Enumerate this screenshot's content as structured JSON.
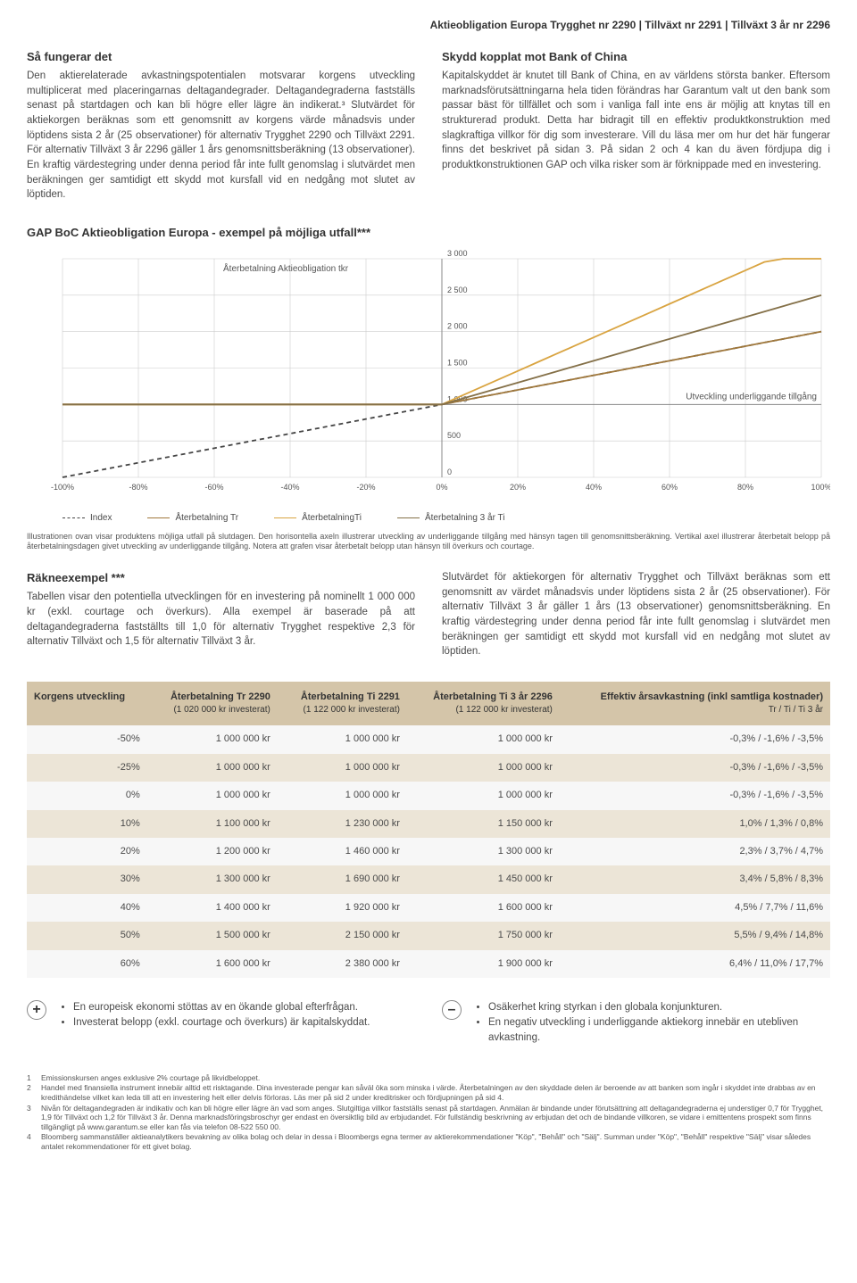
{
  "header": "Aktieobligation Europa Trygghet nr 2290 | Tillväxt nr 2291 | Tillväxt 3 år nr 2296",
  "left": {
    "title": "Så fungerar det",
    "body": "Den aktierelaterade avkastningspotentialen motsvarar korgens utveckling multiplicerat med placeringarnas deltagandegrader. Deltagandegraderna fastställs senast på startdagen och kan bli högre eller lägre än indikerat.³ Slutvärdet för aktiekorgen beräknas som ett genomsnitt av korgens värde månadsvis under löptidens sista 2 år (25 observationer) för alternativ Trygghet 2290 och Tillväxt 2291. För alternativ Tillväxt 3 år 2296 gäller 1 års genomsnittsberäkning (13 observationer). En kraftig värdestegring under denna period får inte fullt genomslag i slutvärdet men beräkningen ger samtidigt ett skydd mot kursfall vid en nedgång mot slutet av löptiden."
  },
  "right": {
    "title": "Skydd kopplat mot Bank of China",
    "body": "Kapitalskyddet är knutet till Bank of China, en av världens största banker. Eftersom marknadsförutsättningarna hela tiden förändras har Garantum valt ut den bank som passar bäst för tillfället och som i vanliga fall inte ens är möjlig att knytas till en strukturerad produkt. Detta har bidragit till en effektiv produktkonstruktion med slagkraftiga villkor för dig som investerare. Vill du läsa mer om hur det här fungerar finns det beskrivet på sidan 3. På sidan 2 och 4 kan du även fördjupa dig i produktkonstruktionen GAP och vilka risker som är förknippade med en investering."
  },
  "chart": {
    "title": "GAP BoC Aktieobligation Europa - exempel på möjliga utfall***",
    "y_label": "Återbetalning Aktieobligation tkr",
    "x_label": "Utveckling underliggande tillgång",
    "type": "line",
    "xlim": [
      -100,
      100
    ],
    "ylim": [
      0,
      3000
    ],
    "x_ticks": [
      "-100%",
      "-80%",
      "-60%",
      "-40%",
      "-20%",
      "0%",
      "20%",
      "40%",
      "60%",
      "80%",
      "100%"
    ],
    "y_ticks": [
      "0",
      "500",
      "1 000",
      "1 500",
      "2 000",
      "2 500",
      "3 000"
    ],
    "grid_color": "#cccccc",
    "background_color": "#ffffff",
    "series": [
      {
        "name": "Index",
        "color": "#444444",
        "dash": true,
        "points": [
          [
            -100,
            0
          ],
          [
            100,
            2000
          ]
        ]
      },
      {
        "name": "Återbetalning Tr",
        "color": "#a0783c",
        "dash": false,
        "points": [
          [
            -100,
            1000
          ],
          [
            0,
            1000
          ],
          [
            100,
            2000
          ]
        ]
      },
      {
        "name": "ÅterbetalningTi",
        "color": "#d9a441",
        "dash": false,
        "points": [
          [
            -100,
            1000
          ],
          [
            0,
            1000
          ],
          [
            100,
            3300
          ]
        ]
      },
      {
        "name": "Återbetalning 3 år Ti",
        "color": "#847048",
        "dash": false,
        "points": [
          [
            -100,
            1000
          ],
          [
            0,
            1000
          ],
          [
            100,
            2500
          ]
        ]
      }
    ],
    "caption": "Illustrationen ovan visar produktens möjliga utfall på slutdagen. Den horisontella axeln illustrerar utveckling av underliggande tillgång med hänsyn tagen till genomsnittsberäkning. Vertikal axel illustrerar återbetalt belopp på återbetalningsdagen givet utveckling av underliggande tillgång. Notera att grafen visar återbetalt belopp utan hänsyn till överkurs och courtage."
  },
  "example": {
    "left_title": "Räkneexempel ***",
    "left_body": "Tabellen visar den potentiella utvecklingen för en investering på nominellt 1 000 000 kr (exkl. courtage och överkurs). Alla exempel är baserade på att deltagandegraderna fastställts till 1,0 för alternativ Trygghet respektive 2,3 för alternativ Tillväxt och 1,5 för alternativ Tillväxt 3 år.",
    "right_body": "Slutvärdet för aktiekorgen för alternativ Trygghet och Tillväxt beräknas som ett genomsnitt av värdet månadsvis under löptidens sista 2 år (25 observationer). För alternativ Tillväxt 3 år gäller 1 års (13 observationer) genomsnittsberäkning. En kraftig värdestegring under denna period får inte fullt genomslag i slutvärdet men beräkningen ger samtidigt ett skydd mot kursfall vid en nedgång mot slutet av löptiden."
  },
  "table": {
    "columns": [
      {
        "h": "Korgens utveckling",
        "sub": ""
      },
      {
        "h": "Återbetalning Tr 2290",
        "sub": "(1 020 000 kr investerat)"
      },
      {
        "h": "Återbetalning Ti 2291",
        "sub": "(1 122 000 kr investerat)"
      },
      {
        "h": "Återbetalning Ti 3 år  2296",
        "sub": "(1 122 000 kr investerat)"
      },
      {
        "h": "Effektiv årsavkastning (inkl samtliga kostnader)",
        "sub": "Tr / Ti /  Ti 3 år"
      }
    ],
    "rows": [
      [
        "-50%",
        "1 000 000 kr",
        "1 000 000 kr",
        "1 000 000 kr",
        "-0,3% / -1,6% / -3,5%"
      ],
      [
        "-25%",
        "1 000 000 kr",
        "1 000 000 kr",
        "1 000 000 kr",
        "-0,3% / -1,6% / -3,5%"
      ],
      [
        "0%",
        "1 000 000 kr",
        "1 000 000 kr",
        "1 000 000 kr",
        "-0,3% / -1,6% / -3,5%"
      ],
      [
        "10%",
        "1 100 000 kr",
        "1 230 000 kr",
        "1 150 000 kr",
        "1,0% / 1,3% / 0,8%"
      ],
      [
        "20%",
        "1 200 000 kr",
        "1 460 000 kr",
        "1 300 000 kr",
        "2,3% / 3,7% / 4,7%"
      ],
      [
        "30%",
        "1 300 000 kr",
        "1 690 000 kr",
        "1 450 000 kr",
        "3,4% / 5,8% / 8,3%"
      ],
      [
        "40%",
        "1 400 000 kr",
        "1 920 000 kr",
        "1 600 000 kr",
        "4,5% / 7,7% / 11,6%"
      ],
      [
        "50%",
        "1 500 000 kr",
        "2 150 000 kr",
        "1 750 000 kr",
        "5,5% / 9,4% / 14,8%"
      ],
      [
        "60%",
        "1 600 000 kr",
        "2 380 000 kr",
        "1 900 000 kr",
        "6,4% / 11,0% / 17,7%"
      ]
    ],
    "header_bg": "#d4c5a9",
    "row_odd_bg": "#f7f7f7",
    "row_even_bg": "#ece5d7"
  },
  "pros": [
    "En europeisk ekonomi stöttas av en ökande global efterfrågan.",
    "Investerat belopp (exkl. courtage och överkurs) är kapitalskyddat."
  ],
  "cons": [
    "Osäkerhet kring styrkan i den globala konjunkturen.",
    "En negativ utveckling i underliggande aktiekorg innebär en utebliven avkastning."
  ],
  "footnotes": [
    "Emissionskursen anges exklusive 2% courtage på likvidbeloppet.",
    "Handel med finansiella instrument innebär alltid ett risktagande. Dina investerade pengar kan såväl öka som minska i värde. Återbetalningen av den skyddade delen är beroende av att banken som ingår i skyddet inte drabbas av en kredithändelse vilket kan leda till att en investering helt eller delvis förloras. Läs mer på sid 2 under kreditrisker och fördjupningen på sid 4.",
    "Nivån för deltagandegraden är indikativ och kan bli högre eller lägre än vad som anges. Slutgiltiga villkor fastställs senast på startdagen. Anmälan är bindande under förutsättning att deltagandegraderna ej understiger 0,7 för Trygghet, 1,9 för Tillväxt och 1,2 för Tillväxt 3 år. Denna marknadsföringsbroschyr ger endast en översiktlig bild av erbjudandet. För fullständig beskrivning av erbjudan det och de bindande villkoren, se vidare i emittentens prospekt som finns tillgängligt på www.garantum.se eller kan fås via telefon 08-522 550 00.",
    "Bloomberg sammanställer aktieanalytikers bevakning av olika bolag och delar in dessa i Bloombergs egna termer av aktierekommendationer \"Köp\", \"Behåll\" och \"Sälj\". Summan under \"Köp\", \"Behåll\" respektive \"Sälj\" visar således antalet rekommendationer för ett givet bolag."
  ]
}
